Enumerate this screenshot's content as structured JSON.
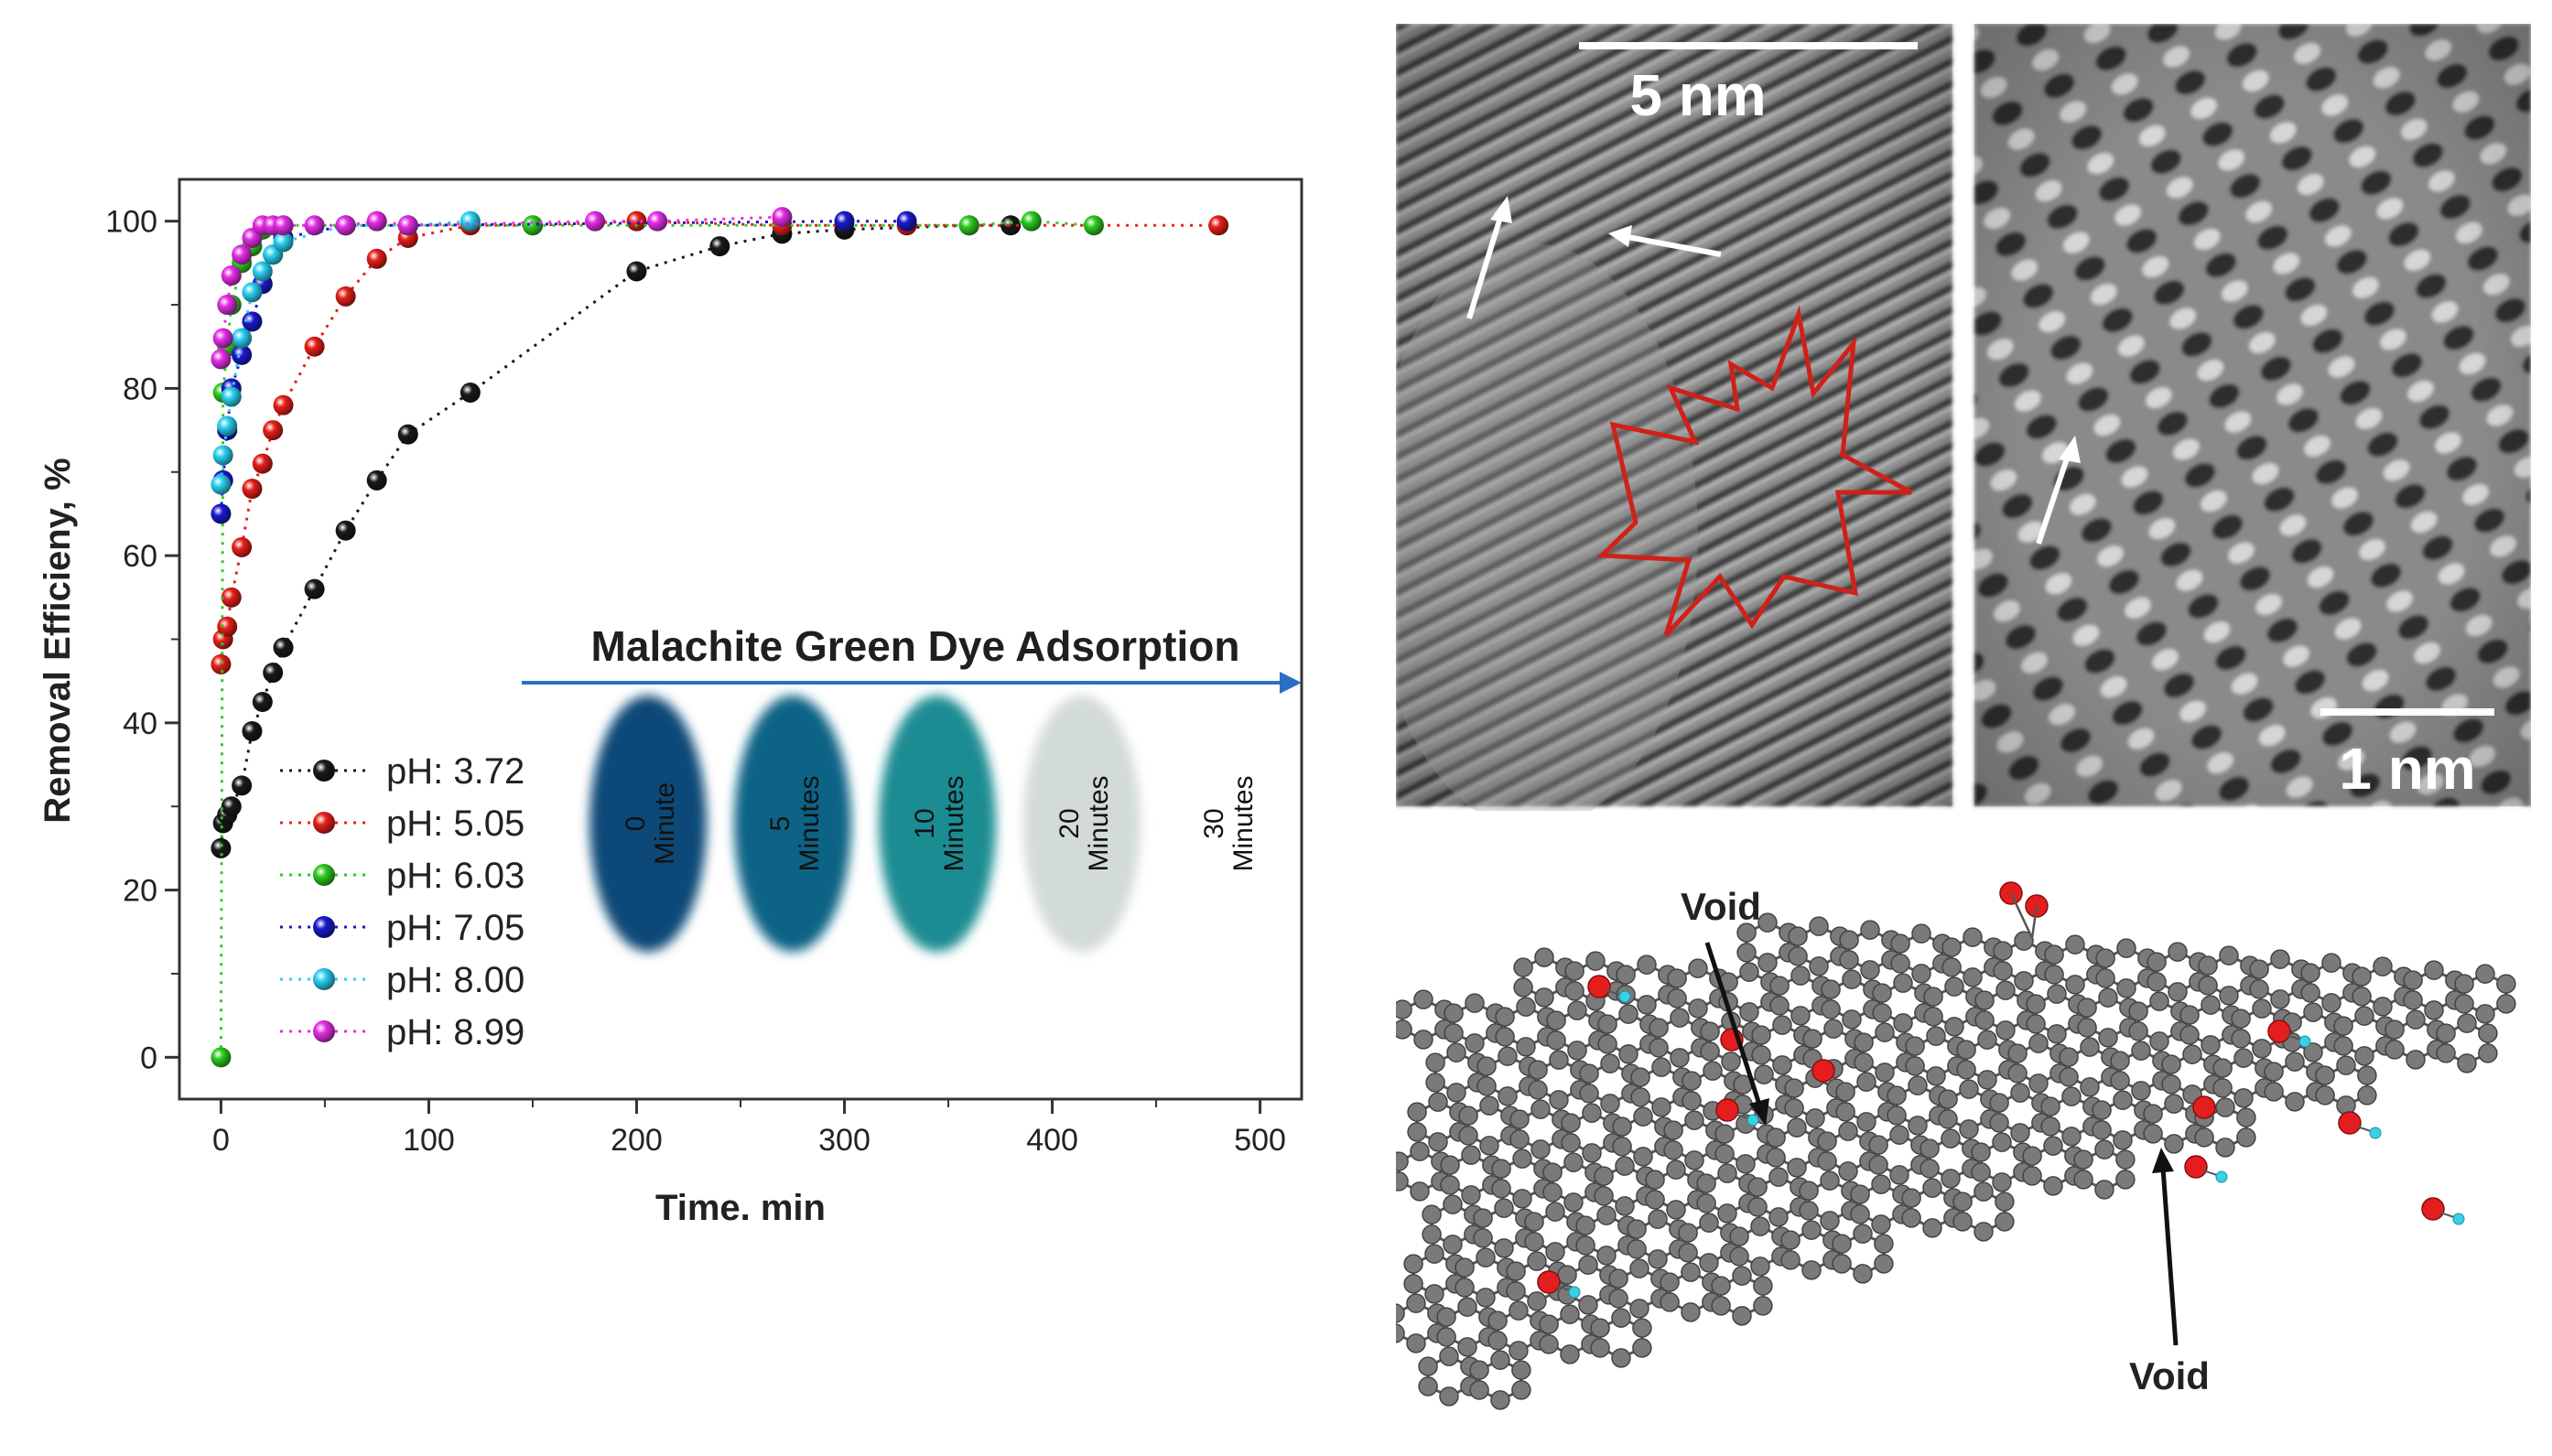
{
  "chart_data": {
    "type": "scatter",
    "xlabel": "Time. min",
    "ylabel": "Removal Efficieny, %",
    "xlim": [
      -20,
      520
    ],
    "ylim": [
      -5,
      105
    ],
    "xticks": [
      0,
      100,
      200,
      300,
      400,
      500
    ],
    "yticks": [
      0,
      20,
      40,
      60,
      80,
      100
    ],
    "grid": false,
    "legend_position": "bottom-left",
    "series": [
      {
        "name": "pH: 3.72",
        "color": "#1a1a1a",
        "x": [
          0,
          1,
          3,
          5,
          10,
          15,
          20,
          25,
          30,
          45,
          60,
          75,
          90,
          120,
          200,
          240,
          270,
          300,
          360,
          380
        ],
        "y": [
          25,
          28,
          29,
          30,
          32.5,
          39,
          42.5,
          46,
          49,
          56,
          63,
          69,
          74.5,
          79.5,
          94,
          97,
          98.5,
          99,
          99.5,
          99.5
        ]
      },
      {
        "name": "pH: 5.05",
        "color": "#e8201a",
        "x": [
          0,
          1,
          3,
          5,
          10,
          15,
          20,
          25,
          30,
          45,
          60,
          75,
          90,
          120,
          150,
          200,
          270,
          330,
          480
        ],
        "y": [
          47,
          50,
          51.5,
          55,
          61,
          68,
          71,
          75,
          78,
          85,
          91,
          95.5,
          98,
          99.5,
          99.5,
          100,
          99.5,
          99.5,
          99.5
        ]
      },
      {
        "name": "pH: 6.03",
        "color": "#2ecc1f",
        "x": [
          0,
          1,
          3,
          5,
          10,
          15,
          20,
          30,
          60,
          90,
          150,
          360,
          390,
          420
        ],
        "y": [
          0,
          79.5,
          85,
          90,
          95,
          97,
          99,
          99.5,
          99.5,
          99.5,
          99.5,
          99.5,
          100,
          99.5
        ]
      },
      {
        "name": "pH: 7.05",
        "color": "#1a1ad0",
        "x": [
          0,
          1,
          3,
          5,
          10,
          15,
          20,
          25,
          30,
          60,
          90,
          300,
          330
        ],
        "y": [
          65,
          69,
          75,
          80,
          84,
          88,
          92.5,
          96,
          98,
          99.5,
          99.5,
          100,
          100
        ]
      },
      {
        "name": "pH: 8.00",
        "color": "#2ad0f2",
        "x": [
          0,
          1,
          3,
          5,
          10,
          15,
          20,
          25,
          30,
          60,
          90,
          120
        ],
        "y": [
          68.5,
          72,
          75.5,
          79,
          86,
          91.5,
          94,
          96,
          97.5,
          99.5,
          99.5,
          100
        ]
      },
      {
        "name": "pH: 8.99",
        "color": "#e62ee6",
        "x": [
          0,
          1,
          3,
          5,
          10,
          15,
          20,
          25,
          30,
          45,
          60,
          75,
          90,
          180,
          210,
          270
        ],
        "y": [
          83.5,
          86,
          90,
          93.5,
          96,
          98,
          99.5,
          99.5,
          99.5,
          99.5,
          99.5,
          100,
          99.5,
          100,
          100,
          100.5
        ]
      }
    ]
  },
  "inset": {
    "title": "Malachite Green Dye Adsorption",
    "vials": [
      {
        "num": "0",
        "unit": "Minute",
        "color": "#0e4a78"
      },
      {
        "num": "5",
        "unit": "Minutes",
        "color": "#0f6386"
      },
      {
        "num": "10",
        "unit": "Minutes",
        "color": "#1b8c93"
      },
      {
        "num": "20",
        "unit": "Minutes",
        "color": "#d3dbd6"
      },
      {
        "num": "30",
        "unit": "Minutes",
        "color": "#ffffff"
      }
    ]
  },
  "tem": {
    "left_scale": "5 nm",
    "right_scale": "1 nm"
  },
  "molecule": {
    "void_top": "Void",
    "void_bottom": "Void",
    "carbon_color": "#7a7a7a",
    "oxygen_color": "#e41e1e",
    "hydrogen_color": "#3ad0e8"
  }
}
